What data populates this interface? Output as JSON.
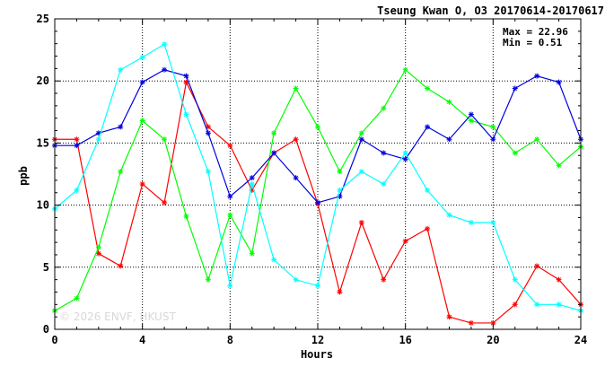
{
  "chart_data": {
    "type": "line",
    "title": "Tseung Kwan O, O3 20170614-20170617",
    "xlabel": "Hours",
    "ylabel": "ppb",
    "xlim": [
      0,
      24
    ],
    "ylim": [
      0,
      25
    ],
    "x_ticks": [
      "0",
      "4",
      "8",
      "12",
      "16",
      "20",
      "24"
    ],
    "y_ticks": [
      "0",
      "5",
      "10",
      "15",
      "20",
      "25"
    ],
    "grid": true,
    "stats": {
      "max_label": "Max = 22.96",
      "min_label": "Min =  0.51"
    },
    "watermark": "© 2026 ENVF, HKUST",
    "x": [
      0,
      1,
      2,
      3,
      4,
      5,
      6,
      7,
      8,
      9,
      10,
      11,
      12,
      13,
      14,
      15,
      16,
      17,
      18,
      19,
      20,
      21,
      22,
      23,
      24
    ],
    "series": [
      {
        "color": "#ff0000",
        "values": [
          15.3,
          15.3,
          6.1,
          5.1,
          11.7,
          10.2,
          19.9,
          16.3,
          14.8,
          11.2,
          14.2,
          15.3,
          10.1,
          3.0,
          8.6,
          4.0,
          7.1,
          8.1,
          1.0,
          0.51,
          0.51,
          2.0,
          5.1,
          4.0,
          2.0
        ]
      },
      {
        "color": "#00ff00",
        "values": [
          1.5,
          2.5,
          6.6,
          12.7,
          16.8,
          15.3,
          9.1,
          4.0,
          9.2,
          6.1,
          15.8,
          19.4,
          16.3,
          12.7,
          15.8,
          17.8,
          20.9,
          19.4,
          18.3,
          16.8,
          16.3,
          14.2,
          15.3,
          13.2,
          14.7
        ]
      },
      {
        "color": "#0000dd",
        "values": [
          14.8,
          14.8,
          15.8,
          16.3,
          19.9,
          20.9,
          20.4,
          15.8,
          10.7,
          12.2,
          14.2,
          12.2,
          10.2,
          10.7,
          15.3,
          14.2,
          13.7,
          16.3,
          15.3,
          17.3,
          15.3,
          19.4,
          20.4,
          19.9,
          15.3
        ]
      },
      {
        "color": "#00ffff",
        "values": [
          9.7,
          11.2,
          15.3,
          20.9,
          21.9,
          22.96,
          17.3,
          12.7,
          3.5,
          11.7,
          5.6,
          4.0,
          3.5,
          11.2,
          12.7,
          11.7,
          14.2,
          11.2,
          9.2,
          8.6,
          8.6,
          4.0,
          2.0,
          2.0,
          1.5
        ]
      }
    ]
  }
}
